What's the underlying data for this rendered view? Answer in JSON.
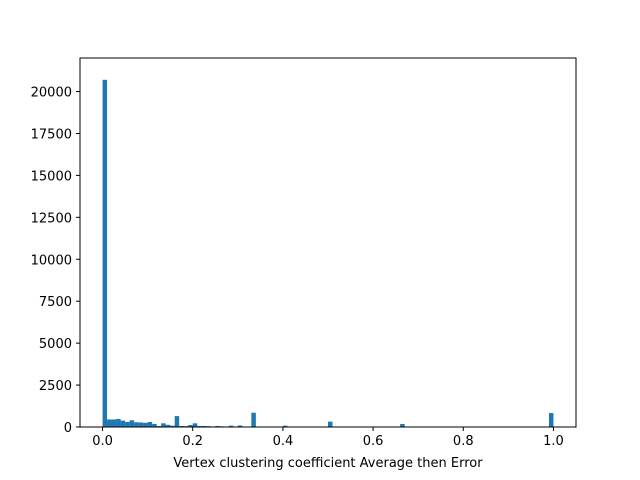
{
  "chart_data": {
    "type": "bar",
    "xlabel": "Vertex clustering coefficient Average then Error",
    "ylabel": "",
    "xlim": [
      -0.05,
      1.05
    ],
    "ylim": [
      0,
      22000
    ],
    "grid": false,
    "bar_color": "#1f77b4",
    "bin_width": 0.01,
    "x_ticks": [
      {
        "value": 0.0,
        "label": "0.0"
      },
      {
        "value": 0.2,
        "label": "0.2"
      },
      {
        "value": 0.4,
        "label": "0.4"
      },
      {
        "value": 0.6,
        "label": "0.6"
      },
      {
        "value": 0.8,
        "label": "0.8"
      },
      {
        "value": 1.0,
        "label": "1.0"
      }
    ],
    "y_ticks": [
      {
        "value": 0,
        "label": "0"
      },
      {
        "value": 2500,
        "label": "2500"
      },
      {
        "value": 5000,
        "label": "5000"
      },
      {
        "value": 7500,
        "label": "7500"
      },
      {
        "value": 10000,
        "label": "10000"
      },
      {
        "value": 12500,
        "label": "12500"
      },
      {
        "value": 15000,
        "label": "15000"
      },
      {
        "value": 17500,
        "label": "17500"
      },
      {
        "value": 20000,
        "label": "20000"
      }
    ],
    "bins": [
      {
        "x": 0.0,
        "value": 20700
      },
      {
        "x": 0.01,
        "value": 450
      },
      {
        "x": 0.02,
        "value": 450
      },
      {
        "x": 0.03,
        "value": 480
      },
      {
        "x": 0.04,
        "value": 380
      },
      {
        "x": 0.05,
        "value": 300
      },
      {
        "x": 0.06,
        "value": 400
      },
      {
        "x": 0.07,
        "value": 280
      },
      {
        "x": 0.08,
        "value": 270
      },
      {
        "x": 0.09,
        "value": 250
      },
      {
        "x": 0.1,
        "value": 300
      },
      {
        "x": 0.11,
        "value": 180
      },
      {
        "x": 0.12,
        "value": 60
      },
      {
        "x": 0.13,
        "value": 220
      },
      {
        "x": 0.14,
        "value": 130
      },
      {
        "x": 0.15,
        "value": 80
      },
      {
        "x": 0.16,
        "value": 650
      },
      {
        "x": 0.17,
        "value": 60
      },
      {
        "x": 0.18,
        "value": 50
      },
      {
        "x": 0.19,
        "value": 120
      },
      {
        "x": 0.2,
        "value": 220
      },
      {
        "x": 0.21,
        "value": 60
      },
      {
        "x": 0.22,
        "value": 60
      },
      {
        "x": 0.23,
        "value": 50
      },
      {
        "x": 0.24,
        "value": 30
      },
      {
        "x": 0.25,
        "value": 60
      },
      {
        "x": 0.26,
        "value": 40
      },
      {
        "x": 0.27,
        "value": 30
      },
      {
        "x": 0.28,
        "value": 80
      },
      {
        "x": 0.29,
        "value": 20
      },
      {
        "x": 0.3,
        "value": 90
      },
      {
        "x": 0.33,
        "value": 850
      },
      {
        "x": 0.4,
        "value": 80
      },
      {
        "x": 0.5,
        "value": 320
      },
      {
        "x": 0.66,
        "value": 180
      },
      {
        "x": 0.99,
        "value": 830
      }
    ]
  }
}
